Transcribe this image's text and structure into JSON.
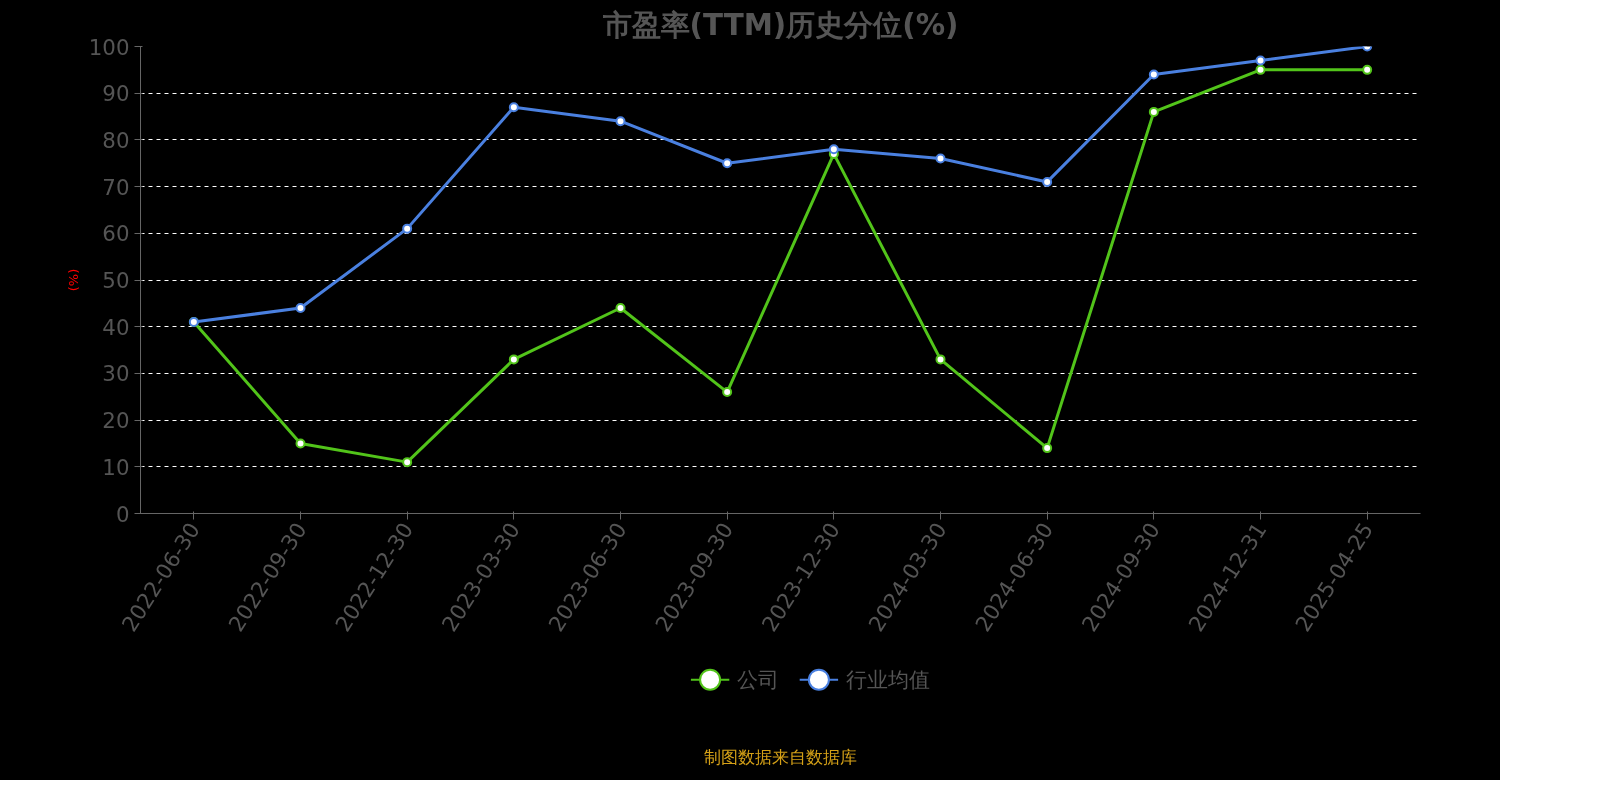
{
  "chart_data": {
    "type": "line",
    "title": "市盈率(TTM)历史分位(%)",
    "ylabel": "(%)",
    "categories": [
      "2022-06-30",
      "2022-09-30",
      "2022-12-30",
      "2023-03-30",
      "2023-06-30",
      "2023-09-30",
      "2023-12-30",
      "2024-03-30",
      "2024-06-30",
      "2024-09-30",
      "2024-12-31",
      "2025-04-25"
    ],
    "series": [
      {
        "name": "公司",
        "color": "#52c41a",
        "values": [
          41,
          15,
          11,
          33,
          44,
          26,
          77,
          33,
          14,
          86,
          95,
          95
        ]
      },
      {
        "name": "行业均值",
        "color": "#4a80e0",
        "values": [
          41,
          44,
          61,
          87,
          84,
          75,
          78,
          76,
          71,
          94,
          97,
          100
        ]
      }
    ],
    "ylim": [
      0,
      100
    ],
    "yticks": [
      0,
      10,
      20,
      30,
      40,
      50,
      60,
      70,
      80,
      90,
      100
    ],
    "grid": "y",
    "legend": "bottom",
    "marker": "circle",
    "line_style": "solid",
    "annotations": [
      "制图数据来自数据库"
    ]
  }
}
